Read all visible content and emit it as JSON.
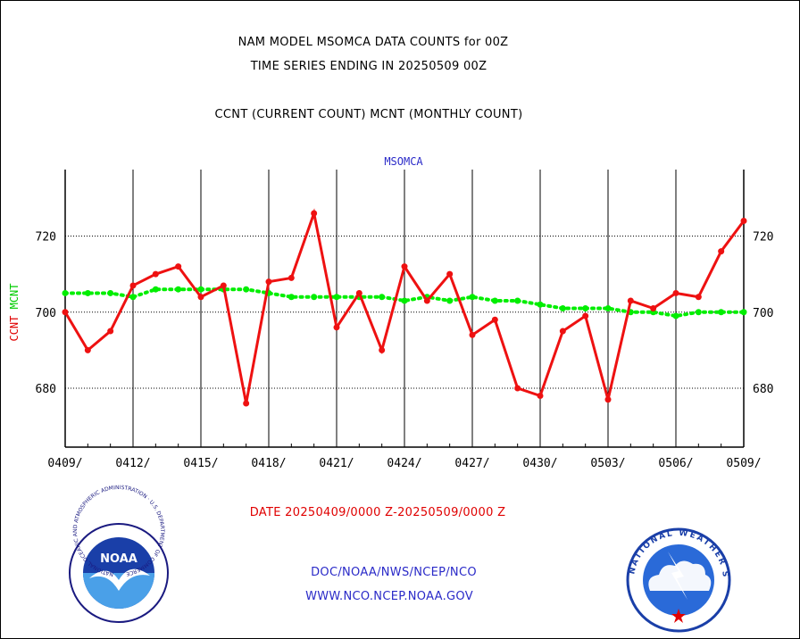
{
  "titles": {
    "line1": "NAM MODEL MSOMCA DATA COUNTS for 00Z",
    "line2": "TIME SERIES ENDING IN 20250509 00Z",
    "line3": "CCNT (CURRENT COUNT) MCNT (MONTHLY COUNT)"
  },
  "footer": {
    "date_range": "DATE 20250409/0000 Z-20250509/0000 Z",
    "org": "DOC/NOAA/NWS/NCEP/NCO",
    "url": "WWW.NCO.NCEP.NOAA.GOV"
  },
  "logos": {
    "noaa": {
      "label": "NOAA",
      "ring_text": "NATIONAL OCEANIC AND ATMOSPHERIC ADMINISTRATION · U.S. DEPARTMENT OF COMMERCE"
    },
    "nws": {
      "ring_text": "NATIONAL WEATHER SERVICE"
    }
  },
  "chart_data": {
    "type": "line",
    "title": "MSOMCA",
    "ylabel_left": [
      "CCNT",
      "MCNT"
    ],
    "ylim": [
      664.5,
      737.5
    ],
    "yticks": [
      680,
      700,
      720
    ],
    "grid": true,
    "x_count": 31,
    "xtick_labels": [
      "0409/",
      "0412/",
      "0415/",
      "0418/",
      "0421/",
      "0424/",
      "0427/",
      "0430/",
      "0503/",
      "0506/",
      "0509/"
    ],
    "series": [
      {
        "name": "CCNT",
        "color": "#ee1111",
        "values": [
          700,
          690,
          695,
          707,
          710,
          712,
          704,
          707,
          676,
          708,
          709,
          726,
          696,
          705,
          690,
          712,
          703,
          710,
          694,
          698,
          680,
          678,
          695,
          699,
          677,
          703,
          701,
          705,
          704,
          716,
          724
        ]
      },
      {
        "name": "MCNT",
        "color": "#00ee00",
        "values": [
          705,
          705,
          705,
          704,
          706,
          706,
          706,
          706,
          706,
          705,
          704,
          704,
          704,
          704,
          704,
          703,
          704,
          703,
          704,
          703,
          703,
          702,
          701,
          701,
          701,
          700,
          700,
          699,
          700,
          700,
          700
        ]
      }
    ]
  }
}
